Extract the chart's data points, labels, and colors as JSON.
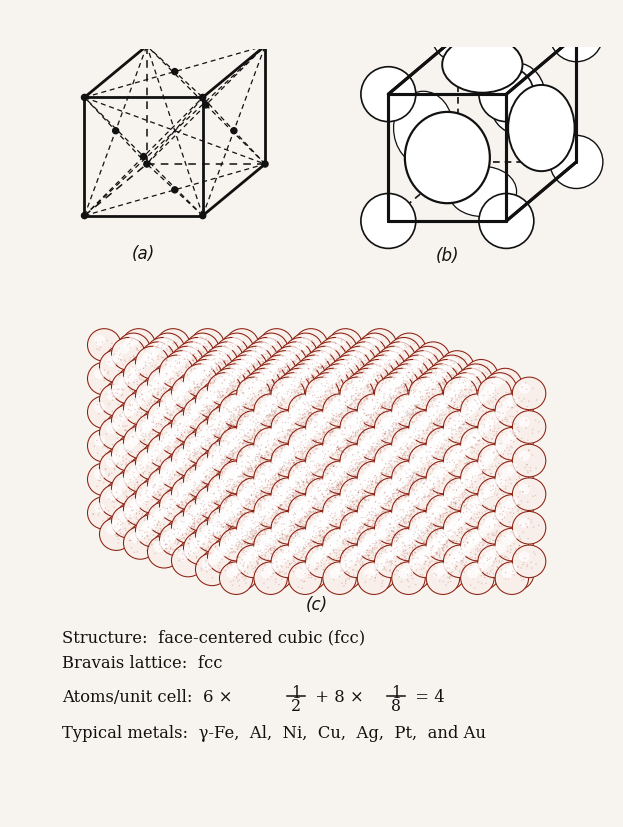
{
  "bg_color": "#f7f3ee",
  "line_color": "#111111",
  "atom_edge_color": "#8b2010",
  "atom_face_color": "#f8eeea",
  "atom_highlight": "#ffffff",
  "label_a": "(a)",
  "label_b": "(b)",
  "label_c": "(c)",
  "line1": "Structure:  face-centered cubic (fcc)",
  "line2": "Bravais lattice:  fcc",
  "line4": "Typical metals:  γ-Fe,  Al,  Ni,  Cu,  Ag,  Pt,  and Au",
  "figsize": [
    6.23,
    8.27
  ],
  "dpi": 100
}
